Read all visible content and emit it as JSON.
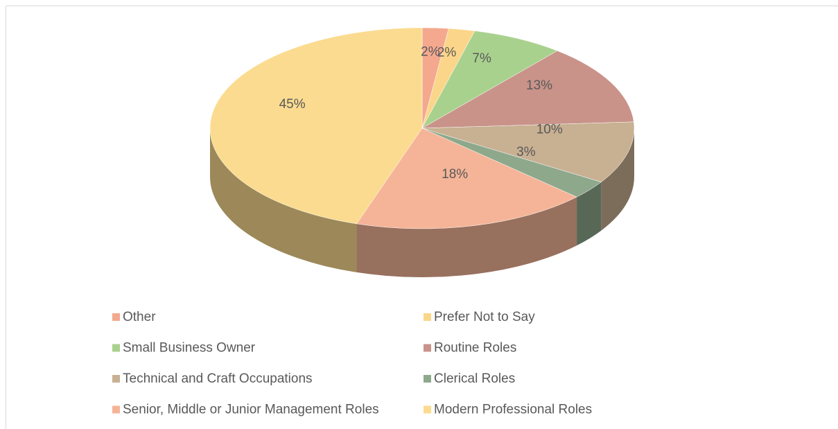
{
  "chart_data": {
    "type": "pie",
    "categories": [
      "Other",
      "Prefer Not to Say",
      "Small Business Owner",
      "Routine Roles",
      "Technical and Craft Occupations",
      "Clerical Roles",
      "Senior, Middle or Junior Management Roles",
      "Modern Professional Roles"
    ],
    "values": [
      2,
      2,
      7,
      13,
      10,
      3,
      18,
      45
    ],
    "value_labels": [
      "2%",
      "2%",
      "7%",
      "13%",
      "10%",
      "3%",
      "18%",
      "45%"
    ],
    "colors": [
      "#f4a98f",
      "#fbd68a",
      "#a9d18e",
      "#c9938a",
      "#c8b092",
      "#8ea88c",
      "#f5b497",
      "#fbdb8f"
    ],
    "legend": "bottom"
  }
}
